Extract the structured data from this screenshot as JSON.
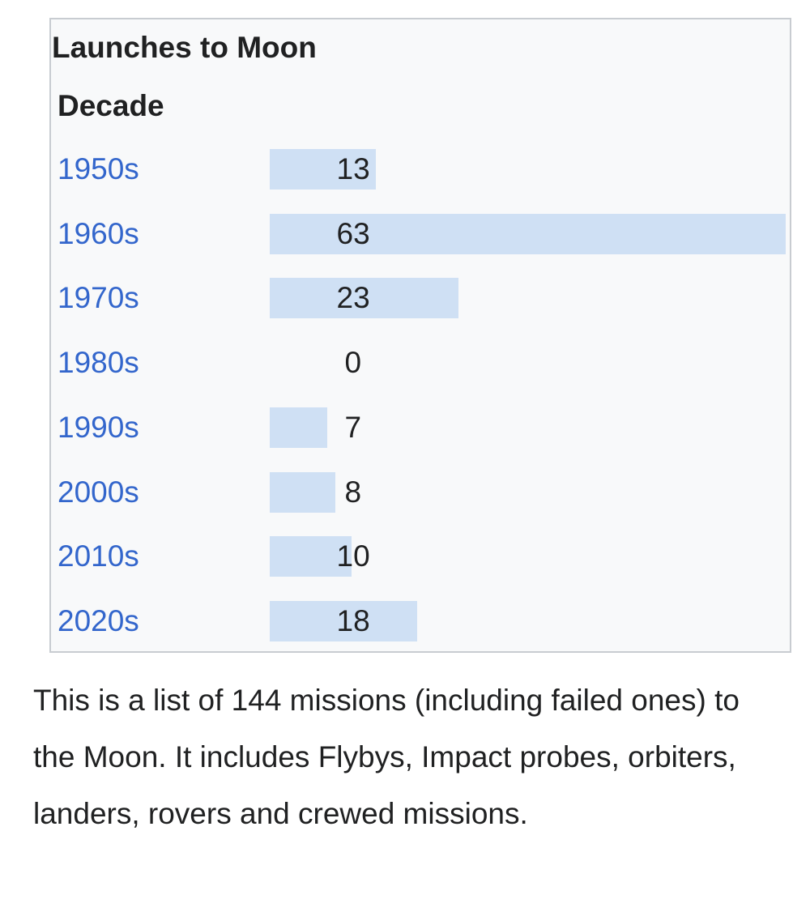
{
  "chart_data": {
    "type": "bar",
    "title": "Launches to Moon",
    "category_header": "Decade",
    "categories": [
      "1950s",
      "1960s",
      "1970s",
      "1980s",
      "1990s",
      "2000s",
      "2010s",
      "2020s"
    ],
    "values": [
      13,
      63,
      23,
      0,
      7,
      8,
      10,
      18
    ],
    "orientation": "horizontal",
    "xlim": [
      0,
      63
    ],
    "bar_color": "#cfe0f4",
    "label_color": "#3366cc",
    "grid": false,
    "legend": "none"
  },
  "description": "This is a list of 144 missions (including failed ones) to the Moon. It includes Flybys, Impact probes, orbiters, landers, rovers and crewed missions."
}
